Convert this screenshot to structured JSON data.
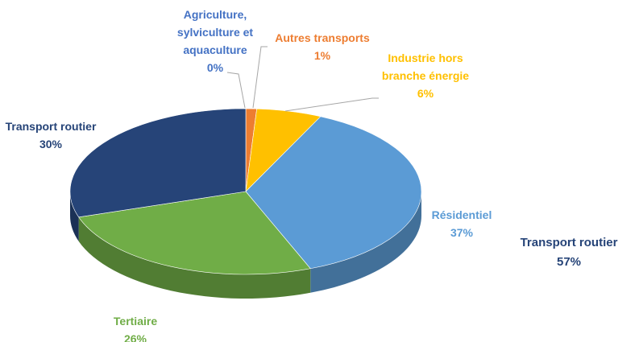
{
  "chart_data": {
    "type": "pie3d",
    "categories": [
      "Agriculture, sylviculture et aquaculture",
      "Autres transports",
      "Industrie hors branche énergie",
      "Résidentiel",
      "Tertiaire",
      "Transport routier"
    ],
    "values": [
      0,
      1,
      6,
      37,
      26,
      30
    ],
    "value_labels": [
      "0%",
      "1%",
      "6%",
      "37%",
      "26%",
      "30%"
    ],
    "colors": [
      "#4472c4",
      "#ed7d31",
      "#ffc000",
      "#5b9bd5",
      "#70ad47",
      "#264478"
    ],
    "annotation": {
      "title": "Transport routier",
      "text": "57%"
    }
  }
}
